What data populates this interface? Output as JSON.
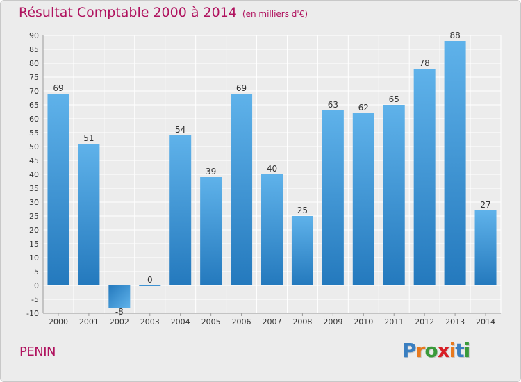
{
  "chart_data": {
    "type": "bar",
    "title": "Résultat Comptable 2000 à 2014",
    "subtitle": "(en milliers d'€)",
    "categories": [
      "2000",
      "2001",
      "2002",
      "2003",
      "2004",
      "2005",
      "2006",
      "2007",
      "2008",
      "2009",
      "2010",
      "2011",
      "2012",
      "2013",
      "2014"
    ],
    "values": [
      69,
      51,
      -8,
      0,
      54,
      39,
      69,
      40,
      25,
      63,
      62,
      65,
      78,
      88,
      27
    ],
    "ylim": [
      -10,
      90
    ],
    "yticks": [
      -10,
      -5,
      0,
      5,
      10,
      15,
      20,
      25,
      30,
      35,
      40,
      45,
      50,
      55,
      60,
      65,
      70,
      75,
      80,
      85,
      90
    ],
    "xlabel": "",
    "ylabel": "",
    "grid": true
  },
  "commune": "PENIN",
  "logo": {
    "letters": [
      "P",
      "r",
      "o",
      "x",
      "i",
      "t",
      "i"
    ],
    "colors": [
      "#3a7fc1",
      "#e8791e",
      "#3a9a3a",
      "#d81e25",
      "#e8791e",
      "#3a7fc1",
      "#3a9a3a"
    ]
  },
  "colors": {
    "bar_light": "#5fb2ea",
    "bar_dark": "#2479bd",
    "title": "#b0135f"
  }
}
